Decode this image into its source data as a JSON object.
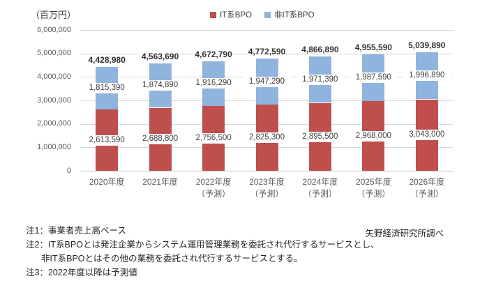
{
  "source": "矢野経済研究所調べ",
  "notes": [
    "注1：事業者売上高ベース",
    "注2：IT系BPOとは発注企業からシステム運用管理業務を委託され代行するサービスとし、",
    "非IT系BPOとはその他の業務を委託され代行するサービスとする。",
    "注3：2022年度以降は予測値"
  ],
  "chart_data": {
    "type": "bar",
    "stacked": true,
    "title": "",
    "ylabel": "（百万円）",
    "xlabel": "",
    "categories": [
      "2020年度",
      "2021年度",
      "2022年度\n（予測）",
      "2023年度\n（予測）",
      "2024年度\n（予測）",
      "2025年度\n（予測）",
      "2026年度\n（予測）"
    ],
    "series": [
      {
        "name": "IT系BPO",
        "color": "#bf4f4c",
        "values": [
          2613590,
          2688800,
          2756500,
          2825300,
          2895500,
          2968000,
          3043000
        ]
      },
      {
        "name": "非IT系BPO",
        "color": "#8fb4de",
        "values": [
          1815390,
          1874890,
          1916290,
          1947290,
          1971390,
          1987590,
          1996890
        ]
      }
    ],
    "totals": [
      4428980,
      4563690,
      4672790,
      4772590,
      4866890,
      4955590,
      5039890
    ],
    "ylim": [
      0,
      6000000
    ],
    "ytick_step": 1000000,
    "grid": true,
    "legend_position": "top-center"
  }
}
